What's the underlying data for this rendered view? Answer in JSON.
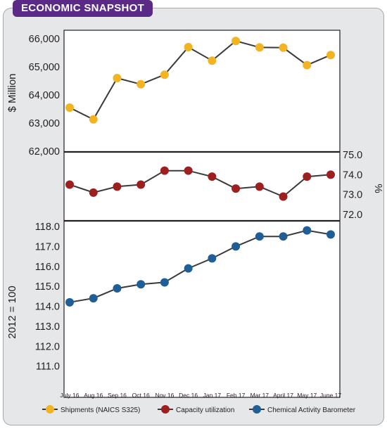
{
  "header": {
    "title": "ECONOMIC SNAPSHOT"
  },
  "colors": {
    "shipments": "#f2b422",
    "capacity": "#9e1f1f",
    "cab": "#1f5f96",
    "line": "#3a3a3a",
    "frame_bg": "#e6e7e8",
    "badge": "#5b2a86"
  },
  "chart_data": [
    {
      "type": "line",
      "name": "shipments-panel",
      "ylabel": "$ Million",
      "ylim": [
        62000,
        66000
      ],
      "yticks": [
        "62,000",
        "63,000",
        "64,000",
        "65,000",
        "66,000"
      ],
      "series": [
        {
          "name": "Shipments (NAICS S325)",
          "values": [
            63550,
            63130,
            64600,
            64380,
            64720,
            65700,
            65220,
            65920,
            65690,
            65680,
            65060,
            65420
          ]
        }
      ]
    },
    {
      "type": "line",
      "name": "capacity-panel",
      "ylabel": "%",
      "ylim": [
        72.0,
        75.0
      ],
      "yticks": [
        "72.0",
        "73.0",
        "74.0",
        "75.0"
      ],
      "series": [
        {
          "name": "Capacity utilization",
          "values": [
            73.5,
            73.1,
            73.4,
            73.5,
            74.2,
            74.2,
            73.9,
            73.3,
            73.4,
            72.9,
            73.9,
            74.0
          ]
        }
      ]
    },
    {
      "type": "line",
      "name": "cab-panel",
      "ylabel": "2012 = 100",
      "ylim": [
        110,
        118
      ],
      "yticks": [
        "111.0",
        "112.0",
        "113.0",
        "114.0",
        "115.0",
        "116.0",
        "117.0",
        "118.0"
      ],
      "series": [
        {
          "name": "Chemical Activity Barometer",
          "values": [
            114.2,
            114.4,
            114.9,
            115.1,
            115.2,
            115.9,
            116.4,
            117.0,
            117.5,
            117.5,
            117.8,
            117.6
          ]
        }
      ]
    }
  ],
  "categories": [
    "July 16",
    "Aug 16",
    "Sep 16",
    "Oct 16",
    "Nov 16",
    "Dec 16",
    "Jan 17",
    "Feb 17",
    "Mar 17",
    "April 17",
    "May 17",
    "June 17"
  ],
  "legend": {
    "items": [
      {
        "label": "Shipments (NAICS S325)",
        "color_key": "shipments"
      },
      {
        "label": "Capacity utilization",
        "color_key": "capacity"
      },
      {
        "label": "Chemical Activity Barometer",
        "color_key": "cab"
      }
    ]
  }
}
